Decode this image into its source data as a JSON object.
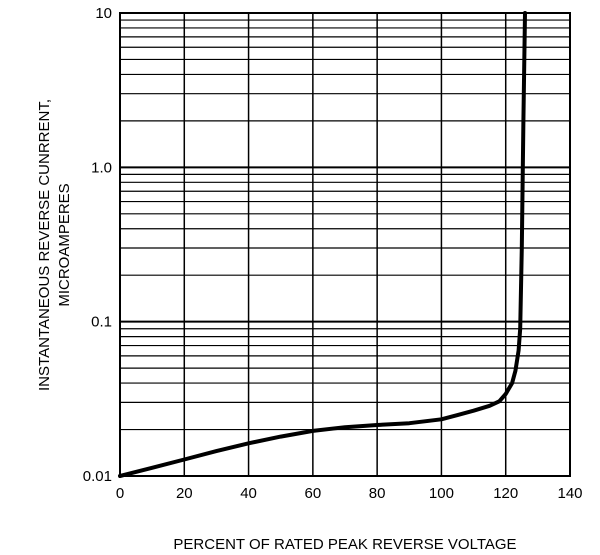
{
  "chart_data": {
    "type": "line",
    "title": "",
    "xlabel": "PERCENT OF RATED PEAK REVERSE VOLTAGE",
    "ylabel_lines": [
      "INSTANTANEOUS REVERSE CUNRRENT,",
      "MICROAMPERES"
    ],
    "x_scale": "linear",
    "y_scale": "log",
    "xlim": [
      0,
      140
    ],
    "ylim": [
      0.01,
      10
    ],
    "x_ticks": [
      0,
      20,
      40,
      60,
      80,
      100,
      120,
      140
    ],
    "x_tick_labels": [
      "0",
      "20",
      "40",
      "60",
      "80",
      "100",
      "120",
      "140"
    ],
    "y_ticks": [
      0.01,
      0.1,
      1,
      10
    ],
    "y_tick_labels": [
      "0.01",
      "0.1",
      "1.0",
      "10"
    ],
    "grid": true,
    "series": [
      {
        "color": "#000000",
        "x": [
          0,
          10,
          20,
          30,
          40,
          50,
          60,
          70,
          80,
          90,
          100,
          105,
          110,
          115,
          118,
          120,
          122,
          123,
          124,
          124.5,
          125,
          125.5,
          126
        ],
        "y": [
          0.01,
          0.0113,
          0.0128,
          0.0145,
          0.0163,
          0.018,
          0.0196,
          0.0207,
          0.0214,
          0.022,
          0.0233,
          0.0248,
          0.0265,
          0.0285,
          0.0305,
          0.034,
          0.04,
          0.048,
          0.065,
          0.09,
          0.3,
          2.0,
          10
        ]
      }
    ]
  }
}
